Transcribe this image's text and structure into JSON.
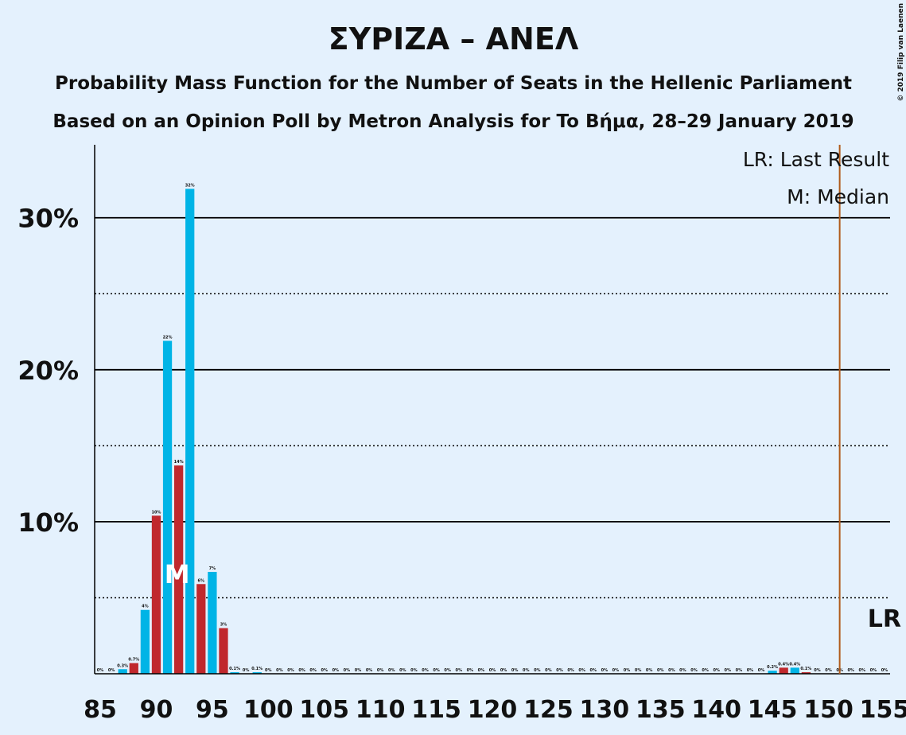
{
  "chart_data": {
    "type": "bar",
    "title": "ΣΥΡΙΖΑ – ΑΝΕΛ",
    "subtitle": "Probability Mass Function for the Number of Seats in the Hellenic Parliament",
    "subtitle2": "Based on an Opinion Poll by Metron Analysis for To Βήμα, 28–29 January 2019",
    "copyright": "© 2019 Filip van Laenen",
    "x": [
      85,
      86,
      87,
      88,
      89,
      90,
      91,
      92,
      93,
      94,
      95,
      96,
      97,
      98,
      99,
      100,
      101,
      102,
      103,
      104,
      105,
      106,
      107,
      108,
      109,
      110,
      111,
      112,
      113,
      114,
      115,
      116,
      117,
      118,
      119,
      120,
      121,
      122,
      123,
      124,
      125,
      126,
      127,
      128,
      129,
      130,
      131,
      132,
      133,
      134,
      135,
      136,
      137,
      138,
      139,
      140,
      141,
      142,
      143,
      144,
      145,
      146,
      147,
      148,
      149,
      150,
      151,
      152,
      153,
      154,
      155
    ],
    "values": [
      0,
      0,
      0.3,
      0.7,
      4.2,
      10.4,
      21.9,
      13.7,
      31.9,
      5.9,
      6.7,
      3.0,
      0.1,
      0,
      0.1,
      0,
      0,
      0,
      0,
      0,
      0,
      0,
      0,
      0,
      0,
      0,
      0,
      0,
      0,
      0,
      0,
      0,
      0,
      0,
      0,
      0,
      0,
      0,
      0,
      0,
      0,
      0,
      0,
      0,
      0,
      0,
      0,
      0,
      0,
      0,
      0,
      0,
      0,
      0,
      0,
      0,
      0,
      0,
      0,
      0,
      0.2,
      0.4,
      0.4,
      0.1,
      0,
      0,
      0,
      0,
      0,
      0,
      0
    ],
    "value_labels": [
      "0%",
      "0%",
      "0.3%",
      "0.7%",
      "4%",
      "10%",
      "22%",
      "14%",
      "32%",
      "6%",
      "7%",
      "3%",
      "0.1%",
      "0%",
      "0.1%",
      "0%",
      "0%",
      "0%",
      "0%",
      "0%",
      "0%",
      "0%",
      "0%",
      "0%",
      "0%",
      "0%",
      "0%",
      "0%",
      "0%",
      "0%",
      "0%",
      "0%",
      "0%",
      "0%",
      "0%",
      "0%",
      "0%",
      "0%",
      "0%",
      "0%",
      "0%",
      "0%",
      "0%",
      "0%",
      "0%",
      "0%",
      "0%",
      "0%",
      "0%",
      "0%",
      "0%",
      "0%",
      "0%",
      "0%",
      "0%",
      "0%",
      "0%",
      "0%",
      "0%",
      "0%",
      "0.2%",
      "0.4%",
      "0.4%",
      "0.1%",
      "0%",
      "0%",
      "0%",
      "0%",
      "0%",
      "0%",
      "0%"
    ],
    "colors": [
      "#00b4e6",
      "#c0282d"
    ],
    "xlim": [
      84.5,
      155.5
    ],
    "xticks": [
      85,
      90,
      95,
      100,
      105,
      110,
      115,
      120,
      125,
      130,
      135,
      140,
      145,
      150,
      155
    ],
    "ylim": [
      0,
      34.8
    ],
    "yticks": [
      {
        "value": 10,
        "label": "10%"
      },
      {
        "value": 20,
        "label": "20%"
      },
      {
        "value": 30,
        "label": "30%"
      }
    ],
    "minor_yticks": [
      5,
      15,
      25
    ],
    "grid": true,
    "median": 92,
    "median_label": "M",
    "last_result": 151,
    "last_result_label": "LR",
    "last_result_color": "#b05a1a",
    "legend": [
      "LR: Last Result",
      "M: Median"
    ],
    "legend_position": "upper right"
  }
}
